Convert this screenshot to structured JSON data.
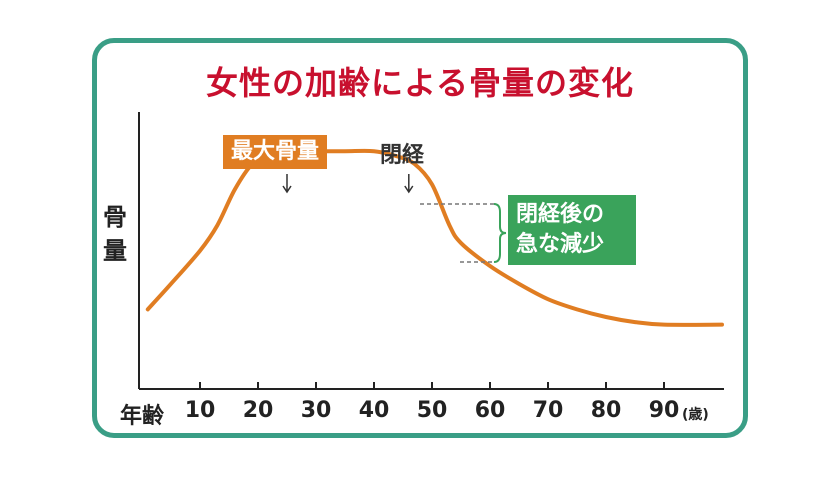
{
  "chart_data": {
    "type": "line",
    "title": "女性の加齢による骨量の変化",
    "ylabel": "骨量",
    "xlabel": "年齢",
    "x_unit": "(歳)",
    "xticks": [
      10,
      20,
      30,
      40,
      50,
      60,
      70,
      80,
      90
    ],
    "xlim": [
      0,
      100
    ],
    "ylim": [
      0,
      100
    ],
    "series": [
      {
        "color": "#e07d22",
        "x": [
          1,
          5,
          10,
          13,
          16,
          19,
          22,
          26,
          30,
          35,
          40,
          44,
          47,
          50,
          53,
          55,
          60,
          65,
          70,
          75,
          80,
          85,
          90,
          100
        ],
        "y": [
          23,
          33,
          46,
          56,
          70,
          80,
          84,
          85,
          85,
          85,
          85,
          83,
          80,
          72,
          56,
          49,
          40,
          33,
          27,
          23,
          20,
          18,
          17,
          17
        ]
      }
    ],
    "annotations": {
      "peak_label": "最大骨量",
      "peak_age": 25,
      "menopause_label": "閉経",
      "menopause_age": 46,
      "decline_label_line1": "閉経後の",
      "decline_label_line2": "急な減少"
    },
    "colors": {
      "line": "#e07d22",
      "peak_badge": "#e07d22",
      "decline_badge": "#3aa35b",
      "frame": "#3a9e86",
      "title": "#c8102e"
    }
  }
}
